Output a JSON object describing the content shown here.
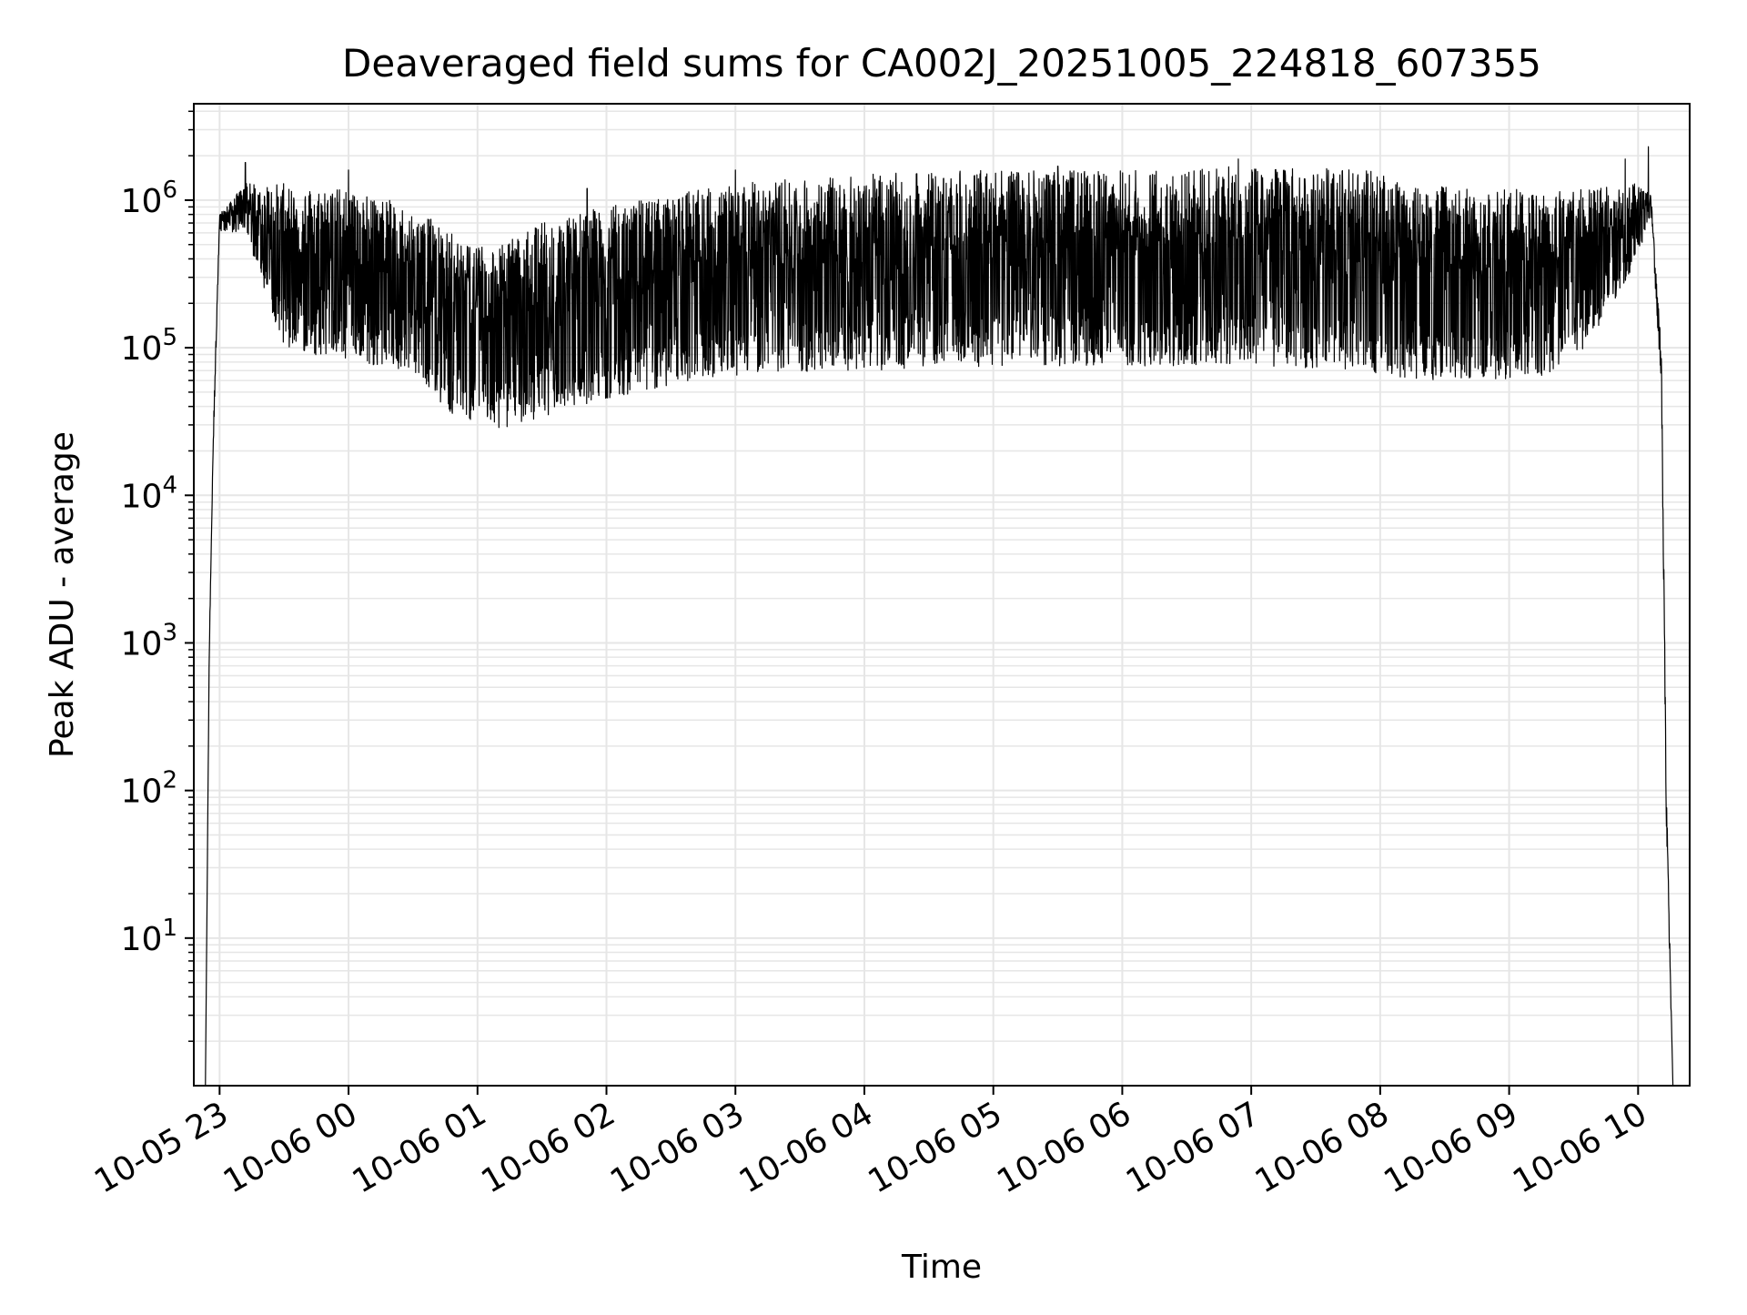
{
  "chart_data": {
    "type": "line",
    "title": "Deaveraged field sums for CA002J_20251005_224818_607355",
    "xlabel": "Time",
    "ylabel": "Peak ADU - average",
    "yscale": "log",
    "ylim": [
      1.0,
      4500000
    ],
    "xlim_hours": [
      -0.2,
      11.4
    ],
    "x_ticks": [
      {
        "label": "10-05 23",
        "hour": 0
      },
      {
        "label": "10-06 00",
        "hour": 1
      },
      {
        "label": "10-06 01",
        "hour": 2
      },
      {
        "label": "10-06 02",
        "hour": 3
      },
      {
        "label": "10-06 03",
        "hour": 4
      },
      {
        "label": "10-06 04",
        "hour": 5
      },
      {
        "label": "10-06 05",
        "hour": 6
      },
      {
        "label": "10-06 06",
        "hour": 7
      },
      {
        "label": "10-06 07",
        "hour": 8
      },
      {
        "label": "10-06 08",
        "hour": 9
      },
      {
        "label": "10-06 09",
        "hour": 10
      },
      {
        "label": "10-06 10",
        "hour": 11
      }
    ],
    "y_ticks": [
      {
        "base": "10",
        "exp": "1",
        "value": 10
      },
      {
        "base": "10",
        "exp": "2",
        "value": 100
      },
      {
        "base": "10",
        "exp": "3",
        "value": 1000
      },
      {
        "base": "10",
        "exp": "4",
        "value": 10000
      },
      {
        "base": "10",
        "exp": "5",
        "value": 100000
      },
      {
        "base": "10",
        "exp": "6",
        "value": 1000000
      }
    ],
    "grid": true,
    "series": [
      {
        "name": "peak_adu_minus_average",
        "color": "#000000",
        "data_start_hour": -0.11,
        "data_end_hour": 11.27,
        "envelope": [
          {
            "hour": -0.11,
            "upper": 1.0,
            "lower": 1.0
          },
          {
            "hour": -0.08,
            "upper": 1000,
            "lower": 800
          },
          {
            "hour": -0.05,
            "upper": 30000,
            "lower": 20000
          },
          {
            "hour": 0.0,
            "upper": 800000,
            "lower": 600000
          },
          {
            "hour": 0.2,
            "upper": 1300000,
            "lower": 600000
          },
          {
            "hour": 0.5,
            "upper": 1300000,
            "lower": 100000
          },
          {
            "hour": 1.0,
            "upper": 1200000,
            "lower": 80000
          },
          {
            "hour": 1.5,
            "upper": 900000,
            "lower": 70000
          },
          {
            "hour": 1.8,
            "upper": 600000,
            "lower": 35000
          },
          {
            "hour": 2.2,
            "upper": 500000,
            "lower": 28000
          },
          {
            "hour": 2.6,
            "upper": 800000,
            "lower": 36000
          },
          {
            "hour": 3.0,
            "upper": 900000,
            "lower": 45000
          },
          {
            "hour": 3.5,
            "upper": 1100000,
            "lower": 55000
          },
          {
            "hour": 4.0,
            "upper": 1300000,
            "lower": 65000
          },
          {
            "hour": 5.0,
            "upper": 1500000,
            "lower": 70000
          },
          {
            "hour": 6.0,
            "upper": 1600000,
            "lower": 75000
          },
          {
            "hour": 7.0,
            "upper": 1600000,
            "lower": 75000
          },
          {
            "hour": 8.0,
            "upper": 1700000,
            "lower": 75000
          },
          {
            "hour": 8.9,
            "upper": 1600000,
            "lower": 70000
          },
          {
            "hour": 9.2,
            "upper": 1300000,
            "lower": 60000
          },
          {
            "hour": 9.8,
            "upper": 1200000,
            "lower": 60000
          },
          {
            "hour": 10.3,
            "upper": 1200000,
            "lower": 65000
          },
          {
            "hour": 10.6,
            "upper": 1200000,
            "lower": 100000
          },
          {
            "hour": 11.0,
            "upper": 1300000,
            "lower": 400000
          },
          {
            "hour": 11.1,
            "upper": 1100000,
            "lower": 800000
          },
          {
            "hour": 11.18,
            "upper": 100000,
            "lower": 50000
          },
          {
            "hour": 11.22,
            "upper": 100,
            "lower": 50
          },
          {
            "hour": 11.27,
            "upper": 1.0,
            "lower": 1.0
          }
        ],
        "spikes": [
          {
            "hour": 0.2,
            "value": 1800000
          },
          {
            "hour": 1.0,
            "value": 1600000
          },
          {
            "hour": 2.85,
            "value": 1200000
          },
          {
            "hour": 4.0,
            "value": 1600000
          },
          {
            "hour": 6.5,
            "value": 1700000
          },
          {
            "hour": 7.9,
            "value": 1900000
          },
          {
            "hour": 10.9,
            "value": 1900000
          },
          {
            "hour": 11.08,
            "value": 2300000
          }
        ]
      }
    ]
  }
}
